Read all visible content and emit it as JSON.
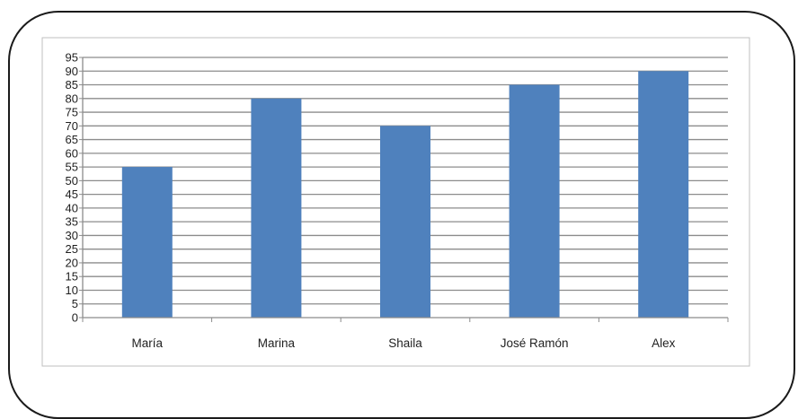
{
  "chart_data": {
    "type": "bar",
    "categories": [
      "María",
      "Marina",
      "Shaila",
      "José Ramón",
      "Alex"
    ],
    "values": [
      55,
      80,
      70,
      85,
      90
    ],
    "title": "",
    "xlabel": "",
    "ylabel": "",
    "ylim": [
      0,
      95
    ],
    "yticks": [
      0,
      5,
      10,
      15,
      20,
      25,
      30,
      35,
      40,
      45,
      50,
      55,
      60,
      65,
      70,
      75,
      80,
      85,
      90,
      95
    ],
    "grid": true,
    "legend": "none",
    "colors": {
      "bar": "#4f81bd",
      "grid": "#8c8c8c",
      "axis": "#8c8c8c",
      "plot_border": "#bfbfbf"
    }
  }
}
